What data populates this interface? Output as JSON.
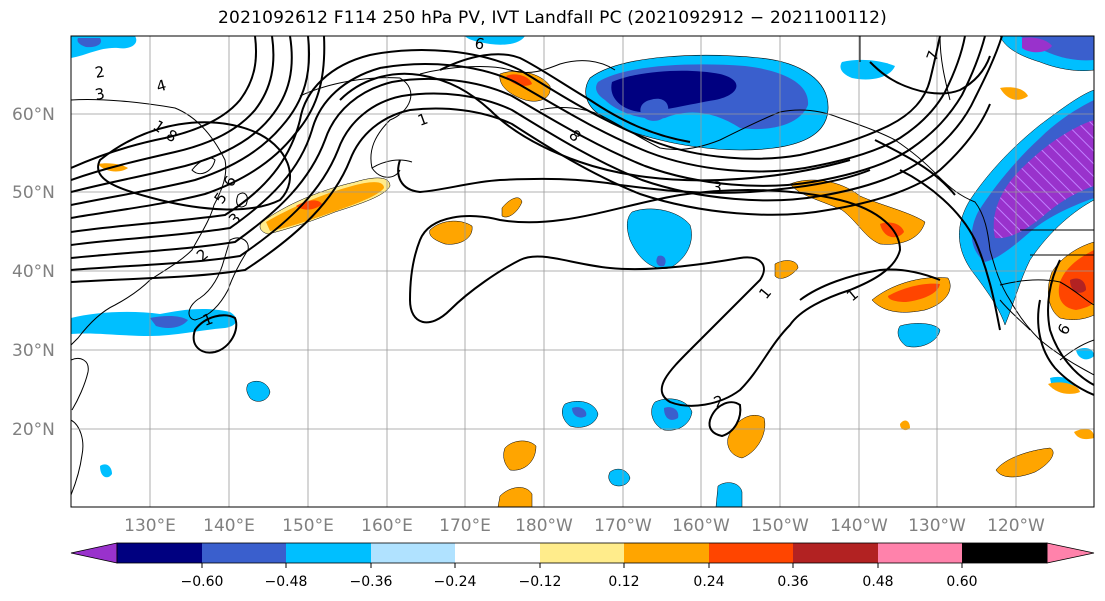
{
  "title": "2021092612 F114 250 hPa PV, IVT Landfall PC (2021092912 - 2021100112)",
  "latitude_labels": [
    "60°N",
    "50°N",
    "40°N",
    "30°N",
    "20°N"
  ],
  "longitude_labels": [
    "130°E",
    "140°E",
    "150°E",
    "160°E",
    "170°E",
    "180°W",
    "170°W",
    "160°W",
    "150°W",
    "140°W",
    "130°W",
    "120°W"
  ],
  "contour_labels": [
    "2",
    "3",
    "4",
    "1",
    "8",
    "6",
    "5",
    "3",
    "2",
    "1",
    "6",
    "8",
    "7",
    "1",
    "1",
    "2",
    "3",
    "1",
    "6"
  ],
  "colorbar": {
    "colors": [
      "#9932cc",
      "#000080",
      "#3a5fcd",
      "#00bfff",
      "#b0e2ff",
      "#ffffff",
      "#ffec8b",
      "#ffa500",
      "#ff4500",
      "#b22222",
      "#ff82ab"
    ],
    "tick_labels": [
      "-0.60",
      "-0.48",
      "-0.36",
      "-0.24",
      "-0.12",
      "0.12",
      "0.24",
      "0.36",
      "0.48",
      "0.60"
    ]
  }
}
